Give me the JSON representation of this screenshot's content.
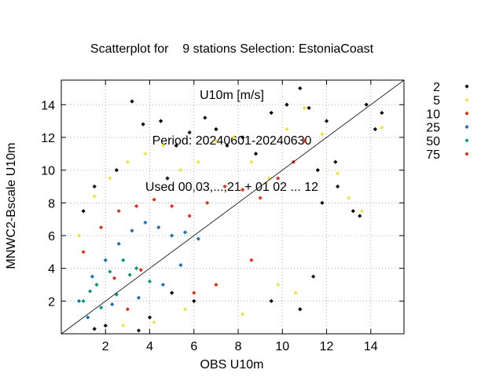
{
  "chart_data": {
    "type": "scatter",
    "title_lines": [
      "Scatterplot for    9 stations Selection: EstoniaCoast",
      "U10m [m/s]",
      "Period: 20240601-20240630",
      "Used 00,03,...,21 + 01 02 ... 12"
    ],
    "xlabel": "OBS U10m",
    "ylabel": "MNWC2-Bscale U10m",
    "xlim": [
      0,
      15.5
    ],
    "ylim": [
      0,
      15.5
    ],
    "xticks": [
      2,
      4,
      6,
      8,
      10,
      12,
      14
    ],
    "yticks": [
      2,
      4,
      6,
      8,
      10,
      12,
      14
    ],
    "grid": true,
    "diagonal_line": true,
    "legend_position": "right-outside",
    "series": [
      {
        "name": "2",
        "color": "#000000",
        "x": [
          1.0,
          1.5,
          2.5,
          3.2,
          3.7,
          4.5,
          5.2,
          5.8,
          6.5,
          7.0,
          7.5,
          8.2,
          8.8,
          9.5,
          10.2,
          10.8,
          11.2,
          11.6,
          12.0,
          12.5,
          13.2,
          13.8,
          14.2,
          14.5,
          13.5,
          9.5,
          10.8,
          11.4,
          3.5,
          4.0,
          2.0,
          1.5,
          5.0,
          6.0,
          4.8,
          12.4,
          11.8
        ],
        "y": [
          7.5,
          9.0,
          10.0,
          14.2,
          12.8,
          13.0,
          11.5,
          12.3,
          13.2,
          12.5,
          11.5,
          12.0,
          11.0,
          13.5,
          14.0,
          15.0,
          13.8,
          10.0,
          13.0,
          9.0,
          7.5,
          14.0,
          12.5,
          13.5,
          7.2,
          2.0,
          1.5,
          3.5,
          0.2,
          1.0,
          0.5,
          0.3,
          2.5,
          2.0,
          9.5,
          10.5,
          8.0
        ]
      },
      {
        "name": "5",
        "color": "#f0e442",
        "x": [
          0.8,
          1.5,
          2.2,
          3.0,
          3.8,
          4.6,
          5.4,
          6.2,
          7.0,
          7.8,
          8.6,
          9.4,
          10.2,
          11.0,
          11.8,
          12.5,
          13.0,
          13.6,
          14.5,
          9.8,
          10.6,
          8.2,
          2.8,
          4.2,
          5.6
        ],
        "y": [
          6.0,
          8.4,
          9.5,
          10.5,
          11.0,
          11.5,
          10.0,
          10.5,
          11.8,
          12.0,
          10.5,
          9.5,
          12.5,
          13.8,
          12.2,
          9.8,
          8.3,
          7.5,
          12.6,
          3.0,
          2.5,
          1.2,
          0.5,
          0.7,
          1.5
        ]
      },
      {
        "name": "10",
        "color": "#e03020",
        "x": [
          1.0,
          1.8,
          2.6,
          3.4,
          4.2,
          5.0,
          5.8,
          6.6,
          7.4,
          8.2,
          9.0,
          9.8,
          10.5,
          11.0,
          6.0,
          7.0,
          8.6,
          3.0
        ],
        "y": [
          5.0,
          6.5,
          7.5,
          7.8,
          8.2,
          7.8,
          7.2,
          8.0,
          9.0,
          8.8,
          8.3,
          9.5,
          10.5,
          11.8,
          2.5,
          3.0,
          4.5,
          1.5
        ]
      },
      {
        "name": "25",
        "color": "#1a70b8",
        "x": [
          0.8,
          1.4,
          2.0,
          2.6,
          3.2,
          3.8,
          4.4,
          5.0,
          5.6,
          6.2,
          1.2,
          2.3,
          3.5,
          4.6,
          5.4
        ],
        "y": [
          2.0,
          3.5,
          4.5,
          5.5,
          6.3,
          6.8,
          6.5,
          6.0,
          6.2,
          5.8,
          1.0,
          1.8,
          2.2,
          3.0,
          4.2
        ]
      },
      {
        "name": "50",
        "color": "#009e73",
        "x": [
          1.0,
          1.6,
          2.2,
          2.8,
          3.4,
          4.0,
          1.3,
          2.5,
          3.1,
          1.8
        ],
        "y": [
          2.0,
          3.0,
          3.8,
          4.5,
          4.0,
          3.2,
          2.6,
          2.4,
          3.6,
          1.6
        ]
      },
      {
        "name": "75",
        "color": "#e03020",
        "x": [
          2.4,
          3.6
        ],
        "y": [
          3.4,
          3.9
        ]
      }
    ]
  }
}
